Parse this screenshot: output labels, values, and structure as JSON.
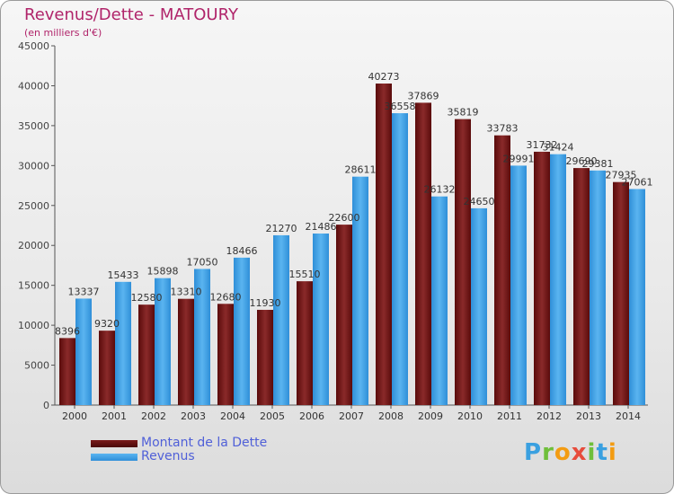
{
  "title": "Revenus/Dette - MATOURY",
  "subtitle": "(en milliers d'€)",
  "logo": {
    "letters": [
      "P",
      "r",
      "o",
      "x",
      "i",
      "t",
      "i"
    ],
    "colors": [
      "#3aa0e0",
      "#6fbf3a",
      "#f39c12",
      "#e74c3c",
      "#6fbf3a",
      "#3aa0e0",
      "#f39c12"
    ]
  },
  "chart_data": {
    "type": "bar",
    "categories": [
      "2000",
      "2001",
      "2002",
      "2003",
      "2004",
      "2005",
      "2006",
      "2007",
      "2008",
      "2009",
      "2010",
      "2011",
      "2012",
      "2013",
      "2014"
    ],
    "series": [
      {
        "name": "Montant de la Dette",
        "color": "#6b1111",
        "values": [
          8396,
          9320,
          12580,
          13310,
          12680,
          11930,
          15510,
          22600,
          40273,
          37869,
          35819,
          33783,
          31732,
          29690,
          27935
        ],
        "labels": [
          "8396",
          "9320",
          "12580",
          "13310",
          "12680",
          "11930",
          "15510",
          "22600",
          "40273",
          "37869",
          "35819",
          "33783",
          "31732",
          "29690",
          "27935"
        ]
      },
      {
        "name": "Revenus",
        "color": "#3d9ee4",
        "values": [
          13337,
          15433,
          15898,
          17050,
          18466,
          21270,
          21486,
          28611,
          36558,
          26132,
          24650,
          29991,
          31424,
          29381,
          27061
        ],
        "labels": [
          "13337",
          "15433",
          "15898",
          "17050",
          "18466",
          "21270",
          "21486",
          "28611",
          "36558",
          "26132",
          "24650",
          "29991",
          "31424",
          "29381",
          "27061"
        ]
      }
    ],
    "yticks": [
      "0",
      "5000",
      "10000",
      "15000",
      "20000",
      "25000",
      "30000",
      "35000",
      "40000",
      "45000"
    ],
    "ylim": [
      0,
      45000
    ],
    "grid": false,
    "legend": "bottom-left"
  }
}
